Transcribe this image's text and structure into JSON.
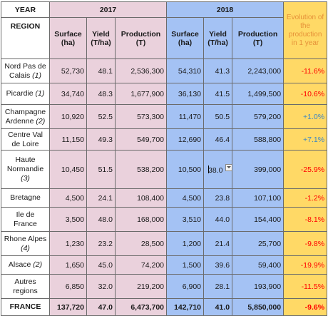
{
  "header": {
    "year_label": "YEAR",
    "year_2017": "2017",
    "year_2018": "2018",
    "region_label": "REGION",
    "surface_label": "Surface (ha)",
    "yield_label": "Yield (T/ha)",
    "production_label": "Production (T)",
    "evolution_label": "Evolution of the production in 1 year"
  },
  "rows": [
    {
      "region": "Nord Pas de Calais",
      "note": "(1)",
      "s17": "52,730",
      "y17": "48.1",
      "p17": "2,536,300",
      "s18": "54,310",
      "y18": "41.3",
      "p18": "2,243,000",
      "evo": "-11.6%"
    },
    {
      "region": "Picardie",
      "note": "(1)",
      "s17": "34,740",
      "y17": "48.3",
      "p17": "1,677,900",
      "s18": "36,130",
      "y18": "41.5",
      "p18": "1,499,500",
      "evo": "-10.6%"
    },
    {
      "region": "Champagne Ardenne",
      "note": "(2)",
      "s17": "10,920",
      "y17": "52.5",
      "p17": "573,300",
      "s18": "11,470",
      "y18": "50.5",
      "p18": "579,200",
      "evo": "+1.0%"
    },
    {
      "region": "Centre Val de Loire",
      "note": "",
      "s17": "11,150",
      "y17": "49.3",
      "p17": "549,700",
      "s18": "12,690",
      "y18": "46.4",
      "p18": "588,800",
      "evo": "+7.1%"
    },
    {
      "region": "Haute Normandie",
      "note": "(3)",
      "s17": "10,450",
      "y17": "51.5",
      "p17": "538,200",
      "s18": "10,500",
      "y18": "38.0",
      "p18": "399,000",
      "evo": "-25.9%"
    },
    {
      "region": "Bretagne",
      "note": "",
      "s17": "4,500",
      "y17": "24.1",
      "p17": "108,400",
      "s18": "4,500",
      "y18": "23.8",
      "p18": "107,100",
      "evo": "-1.2%"
    },
    {
      "region": "Ile de France",
      "note": "",
      "s17": "3,500",
      "y17": "48.0",
      "p17": "168,000",
      "s18": "3,510",
      "y18": "44.0",
      "p18": "154,400",
      "evo": "-8.1%"
    },
    {
      "region": "Rhone Alpes",
      "note": "(4)",
      "s17": "1,230",
      "y17": "23.2",
      "p17": "28,500",
      "s18": "1,200",
      "y18": "21.4",
      "p18": "25,700",
      "evo": "-9.8%"
    },
    {
      "region": "Alsace",
      "note": "(2)",
      "s17": "1,650",
      "y17": "45.0",
      "p17": "74,200",
      "s18": "1,500",
      "y18": "39.6",
      "p18": "59,400",
      "evo": "-19.9%"
    },
    {
      "region": "Autres regions",
      "note": "",
      "s17": "6,850",
      "y17": "32.0",
      "p17": "219,200",
      "s18": "6,900",
      "y18": "28.1",
      "p18": "193,900",
      "evo": "-11.5%"
    }
  ],
  "total": {
    "region": "FRANCE",
    "s17": "137,720",
    "y17": "47.0",
    "p17": "6,473,700",
    "s18": "142,710",
    "y18": "41.0",
    "p18": "5,850,000",
    "evo": "-9.6%"
  },
  "colors": {
    "col_2017": "#ead1dc",
    "col_2018": "#a4c2f4",
    "col_evolution": "#ffd966",
    "negative": "#ff0000",
    "positive": "#3d85c6",
    "evolution_header": "#e69138"
  },
  "icons": {
    "dropdown": "dropdown-arrow-icon"
  }
}
